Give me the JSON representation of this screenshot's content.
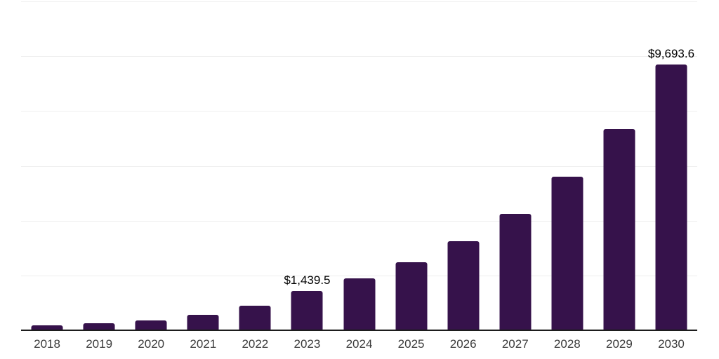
{
  "chart_data": {
    "type": "bar",
    "title": "",
    "xlabel": "",
    "ylabel": "",
    "categories": [
      "2018",
      "2019",
      "2020",
      "2021",
      "2022",
      "2023",
      "2024",
      "2025",
      "2026",
      "2027",
      "2028",
      "2029",
      "2030"
    ],
    "values": [
      180,
      255,
      360,
      570,
      885,
      1439.5,
      1885,
      2480,
      3240,
      4235,
      5595,
      7355,
      9693.6
    ],
    "data_labels": [
      {
        "category": "2023",
        "text": "$1,439.5"
      },
      {
        "category": "2030",
        "text": "$9,693.6"
      }
    ],
    "ylim": [
      0,
      12000
    ],
    "gridline_interval": 2000,
    "grid": true,
    "legend": false,
    "y_tick_labels_visible": false,
    "colors": {
      "bar": "#36124B",
      "gridline": "#EFEFEF",
      "axis_line": "#1D1D1D",
      "x_tick_label": "#3B3B3B",
      "data_label": "#000000",
      "background": "#FFFFFF"
    }
  }
}
